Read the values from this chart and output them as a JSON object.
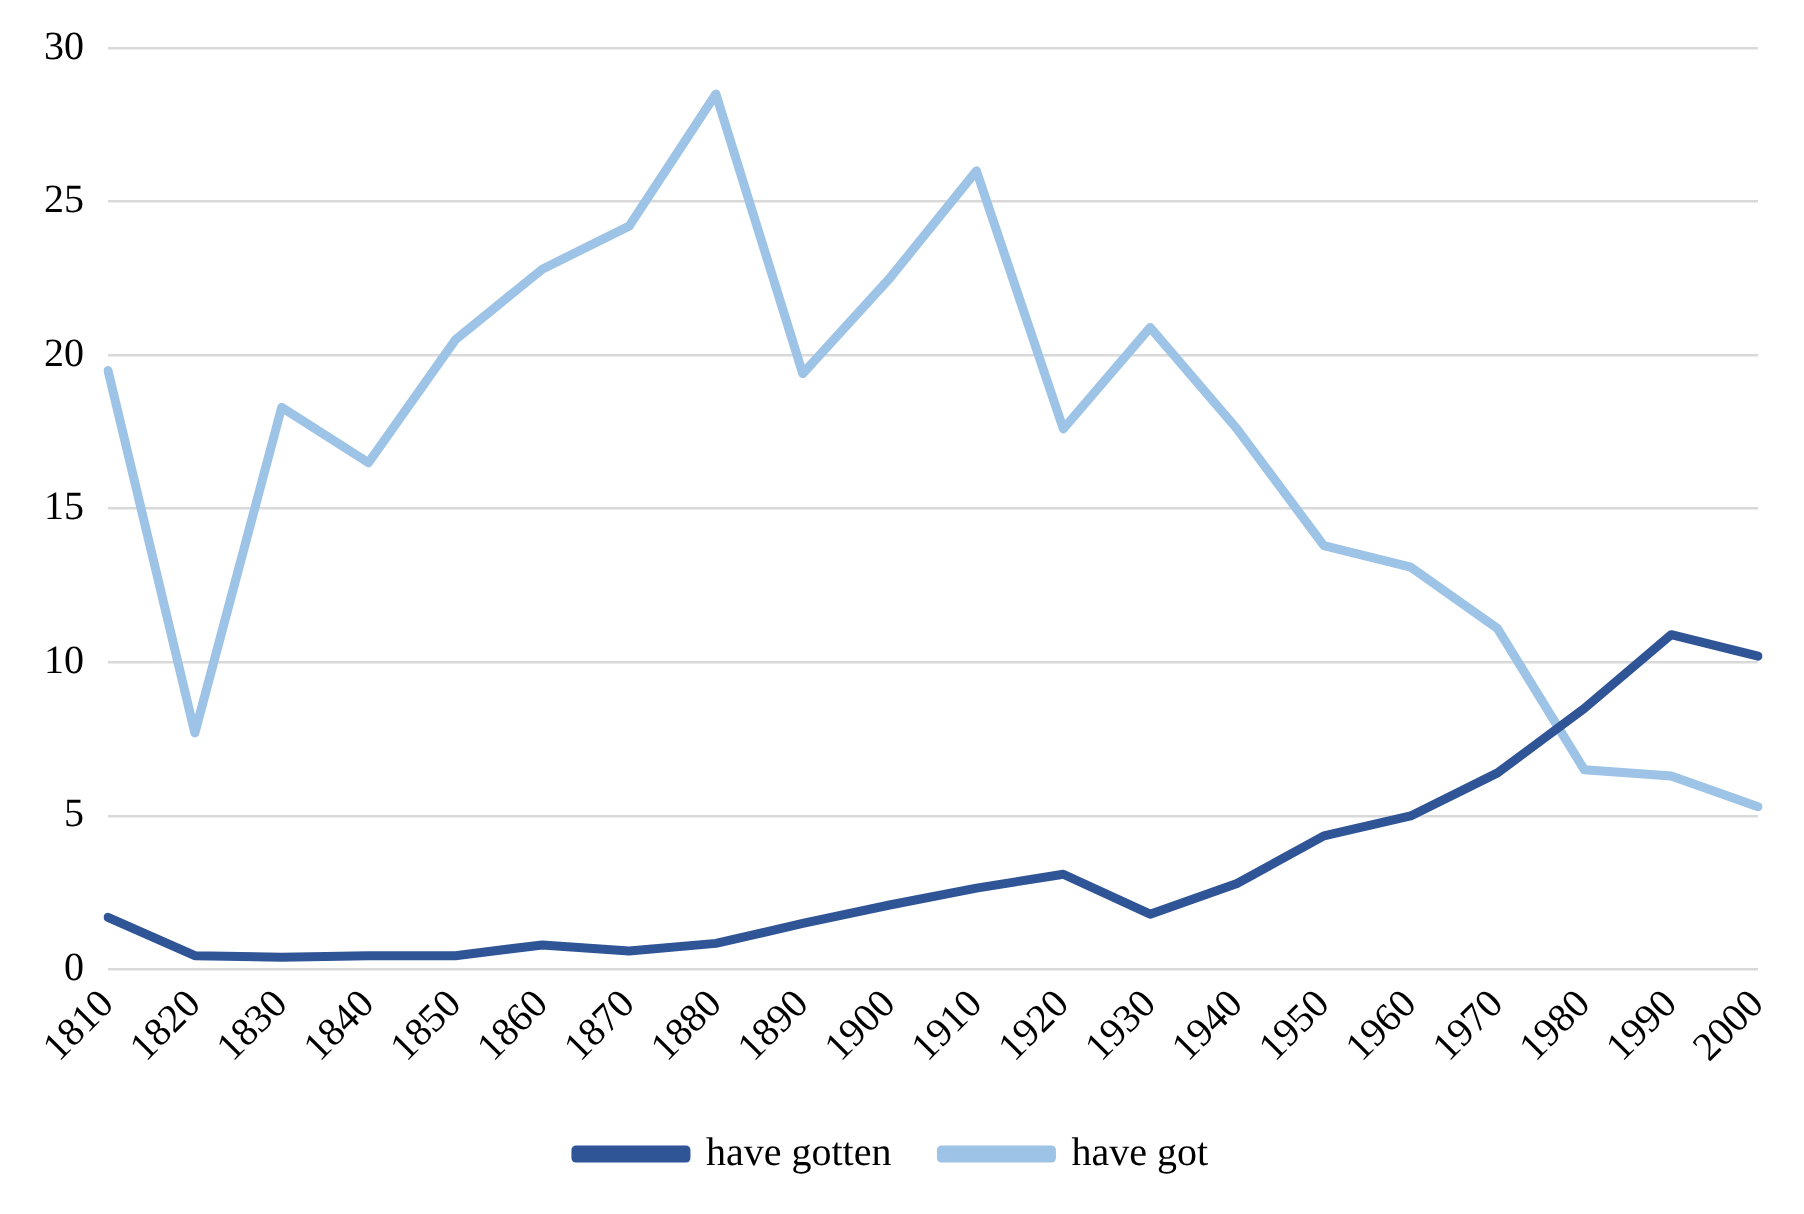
{
  "chart_data": {
    "type": "line",
    "categories": [
      "1810",
      "1820",
      "1830",
      "1840",
      "1850",
      "1860",
      "1870",
      "1880",
      "1890",
      "1900",
      "1910",
      "1920",
      "1930",
      "1940",
      "1950",
      "1960",
      "1970",
      "1980",
      "1990",
      "2000"
    ],
    "series": [
      {
        "name": "have gotten",
        "color": "#2f5597",
        "values": [
          1.7,
          0.45,
          0.4,
          0.45,
          0.45,
          0.8,
          0.6,
          0.85,
          1.5,
          2.1,
          2.65,
          3.1,
          1.8,
          2.8,
          4.35,
          5.0,
          6.4,
          8.5,
          10.9,
          10.2
        ]
      },
      {
        "name": "have got",
        "color": "#9dc3e6",
        "values": [
          19.5,
          7.7,
          18.3,
          16.5,
          20.5,
          22.8,
          24.2,
          28.5,
          19.4,
          22.5,
          26.0,
          17.6,
          20.9,
          17.6,
          13.8,
          13.1,
          11.1,
          6.5,
          6.3,
          5.3
        ]
      }
    ],
    "ylim": [
      0,
      30
    ],
    "yticks": [
      0,
      5,
      10,
      15,
      20,
      25,
      30
    ],
    "grid": "y",
    "legend": "bottom",
    "marker": "none",
    "line_style": "solid"
  }
}
